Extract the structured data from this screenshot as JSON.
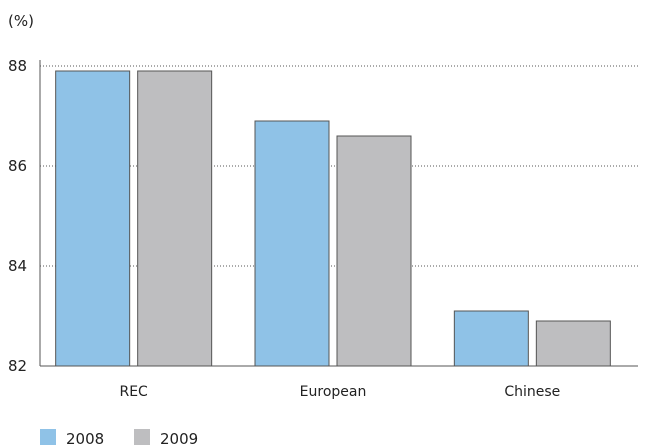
{
  "chart_data": {
    "type": "bar",
    "unit_label": "(%)",
    "categories": [
      "REC",
      "European",
      "Chinese"
    ],
    "series": [
      {
        "name": "2008",
        "color": "#8fc2e7",
        "values": [
          87.9,
          86.9,
          83.1
        ]
      },
      {
        "name": "2009",
        "color": "#bebec0",
        "values": [
          87.9,
          86.6,
          82.9
        ]
      }
    ],
    "ylim": [
      82,
      88
    ],
    "yticks": [
      82,
      84,
      86,
      88
    ],
    "grid": true,
    "legend_position": "bottom-left"
  }
}
